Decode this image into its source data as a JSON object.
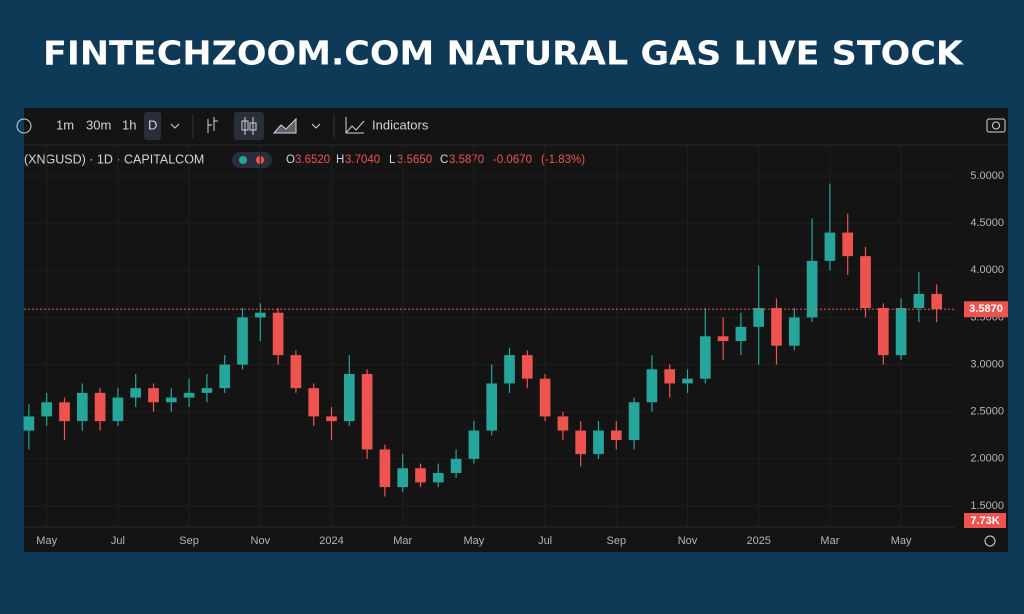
{
  "header": {
    "title": "FINTECHZOOM.COM NATURAL GAS LIVE STOCK"
  },
  "toolbar": {
    "intervals": [
      "1m",
      "30m",
      "1h",
      "D"
    ],
    "indicators": "Indicators"
  },
  "legend": {
    "symbol": "(XNGUSD) · 1D · CAPITALCOM",
    "o_key": "O",
    "o": "3.6520",
    "h_key": "H",
    "h": "3.7040",
    "l_key": "L",
    "l": "3.5650",
    "c_key": "C",
    "c": "3.5870",
    "change": "-0.0670",
    "change_pct": "(-1.83%)"
  },
  "volume_label": "7.73K",
  "chart_data": {
    "type": "candlestick",
    "categories": [
      null,
      "May",
      null,
      null,
      null,
      "Jul",
      null,
      null,
      null,
      "Sep",
      null,
      null,
      null,
      "Nov",
      null,
      null,
      null,
      "2024",
      null,
      null,
      null,
      "Mar",
      null,
      null,
      null,
      "May",
      null,
      null,
      null,
      "Jul",
      null,
      null,
      null,
      "Sep",
      null,
      null,
      null,
      "Nov",
      null,
      null,
      null,
      "2025",
      null,
      null,
      null,
      "Mar",
      null,
      null,
      null,
      "May",
      null,
      null
    ],
    "open": [
      2.3,
      2.45,
      2.6,
      2.4,
      2.7,
      2.4,
      2.65,
      2.75,
      2.6,
      2.65,
      2.7,
      2.75,
      3.0,
      3.5,
      3.55,
      3.1,
      2.75,
      2.45,
      2.4,
      2.9,
      2.1,
      1.7,
      1.9,
      1.75,
      1.85,
      2.0,
      2.3,
      2.8,
      3.1,
      2.85,
      2.45,
      2.3,
      2.05,
      2.3,
      2.2,
      2.6,
      2.95,
      2.8,
      2.85,
      3.3,
      3.25,
      3.4,
      3.6,
      3.2,
      3.5,
      4.1,
      4.4,
      4.15,
      3.6,
      3.1,
      3.6,
      3.75
    ],
    "high": [
      2.58,
      2.7,
      2.65,
      2.8,
      2.75,
      2.75,
      2.9,
      2.8,
      2.75,
      2.85,
      2.9,
      3.1,
      3.6,
      3.65,
      3.6,
      3.15,
      2.8,
      2.55,
      3.1,
      2.95,
      2.15,
      2.05,
      1.95,
      1.95,
      2.1,
      2.4,
      3.0,
      3.18,
      3.15,
      2.9,
      2.5,
      2.4,
      2.4,
      2.4,
      2.65,
      3.1,
      3.0,
      2.95,
      3.6,
      3.5,
      3.55,
      4.05,
      3.7,
      3.6,
      4.55,
      4.92,
      4.6,
      4.25,
      3.65,
      3.7,
      3.98,
      3.85
    ],
    "low": [
      2.1,
      2.35,
      2.2,
      2.3,
      2.3,
      2.35,
      2.55,
      2.5,
      2.5,
      2.55,
      2.6,
      2.7,
      2.95,
      3.25,
      3.0,
      2.7,
      2.35,
      2.2,
      2.35,
      2.0,
      1.6,
      1.65,
      1.7,
      1.7,
      1.8,
      1.95,
      2.25,
      2.7,
      2.75,
      2.4,
      2.2,
      1.92,
      2.0,
      2.1,
      2.1,
      2.5,
      2.65,
      2.7,
      2.8,
      3.05,
      3.1,
      3.0,
      3.0,
      3.15,
      3.45,
      4.0,
      3.95,
      3.5,
      3.0,
      3.05,
      3.45,
      3.45
    ],
    "close": [
      2.45,
      2.6,
      2.4,
      2.7,
      2.4,
      2.65,
      2.75,
      2.6,
      2.65,
      2.7,
      2.75,
      3.0,
      3.5,
      3.55,
      3.1,
      2.75,
      2.45,
      2.4,
      2.9,
      2.1,
      1.7,
      1.9,
      1.75,
      1.85,
      2.0,
      2.3,
      2.8,
      3.1,
      2.85,
      2.45,
      2.3,
      2.05,
      2.3,
      2.2,
      2.6,
      2.95,
      2.8,
      2.85,
      3.3,
      3.25,
      3.4,
      3.6,
      3.2,
      3.5,
      4.1,
      4.4,
      4.15,
      3.6,
      3.1,
      3.6,
      3.75,
      3.587
    ],
    "up_color": "#26a69a",
    "down_color": "#ef5350",
    "ylim": [
      1.4,
      5.1
    ],
    "yticks": [
      {
        "value": 1.5,
        "label": "1.5000"
      },
      {
        "value": 2,
        "label": "2.0000"
      },
      {
        "value": 2.5,
        "label": "2.5000"
      },
      {
        "value": 3,
        "label": "3.0000"
      },
      {
        "value": 3.5,
        "label": "3.5000"
      },
      {
        "value": 4,
        "label": "4.0000"
      },
      {
        "value": 4.5,
        "label": "4.5000"
      },
      {
        "value": 5,
        "label": "5.0000"
      }
    ],
    "last_price": {
      "value": 3.587,
      "label": "3.5870"
    },
    "grid": true
  }
}
